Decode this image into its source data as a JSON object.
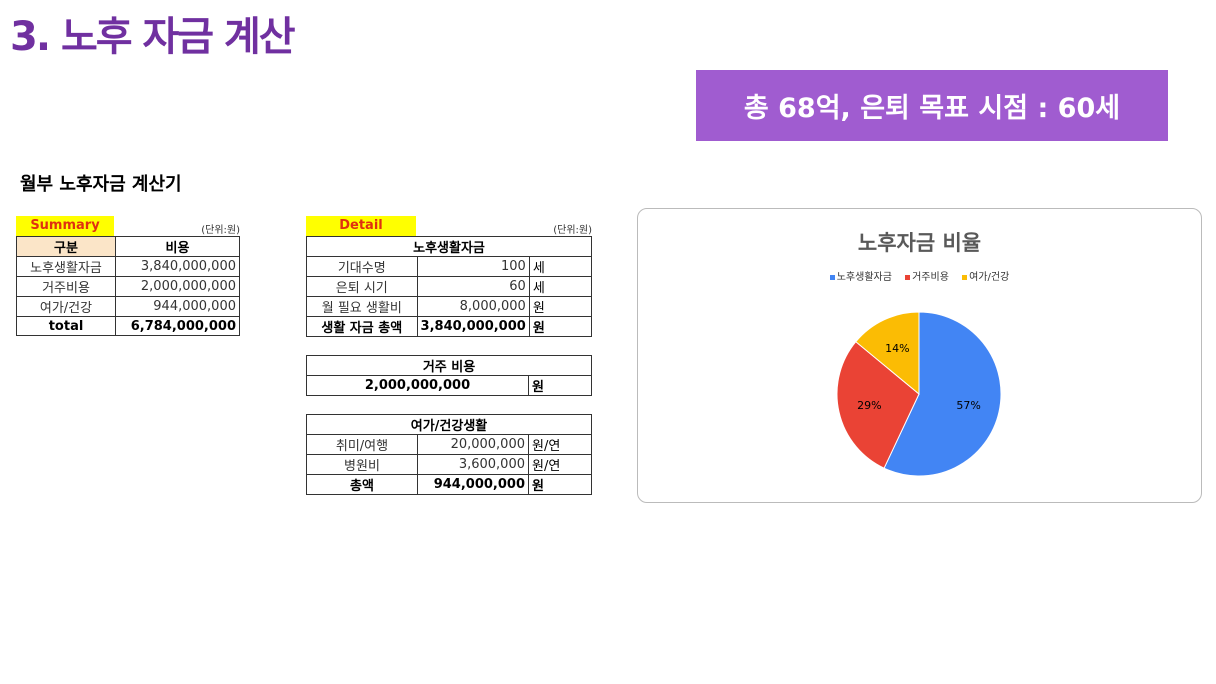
{
  "title": "3. 노후 자금 계산",
  "banner": "총 68억, 은퇴 목표 시점 : 60세",
  "subtitle": "월부 노후자금 계산기",
  "summary": {
    "tag": "Summary",
    "unit": "(단위:원)",
    "headers": [
      "구분",
      "비용"
    ],
    "rows": [
      [
        "노후생활자금",
        "3,840,000,000"
      ],
      [
        "거주비용",
        "2,000,000,000"
      ],
      [
        "여가/건강",
        "944,000,000"
      ]
    ],
    "total": [
      "total",
      "6,784,000,000"
    ]
  },
  "detail": {
    "tag": "Detail",
    "unit": "(단위:원)",
    "living": {
      "title": "노후생활자금",
      "rows": [
        [
          "기대수명",
          "100",
          "세"
        ],
        [
          "은퇴 시기",
          "60",
          "세"
        ],
        [
          "월 필요 생활비",
          "8,000,000",
          "원"
        ]
      ],
      "total": [
        "생활 자금 총액",
        "3,840,000,000",
        "원"
      ]
    },
    "housing": {
      "title": "거주 비용",
      "value": "2,000,000,000",
      "unit": "원"
    },
    "leisure": {
      "title": "여가/건강생활",
      "rows": [
        [
          "취미/여행",
          "20,000,000",
          "원/연"
        ],
        [
          "병원비",
          "3,600,000",
          "원/연"
        ]
      ],
      "total": [
        "총액",
        "944,000,000",
        "원"
      ]
    }
  },
  "chart_data": {
    "type": "pie",
    "title": "노후자금 비율",
    "legend_position": "top",
    "categories": [
      "노후생활자금",
      "거주비용",
      "여가/건강"
    ],
    "values": [
      57,
      29,
      14
    ],
    "labels": [
      "57%",
      "29%",
      "14%"
    ],
    "colors": [
      "#4285f4",
      "#ea4335",
      "#fbbc04"
    ]
  }
}
